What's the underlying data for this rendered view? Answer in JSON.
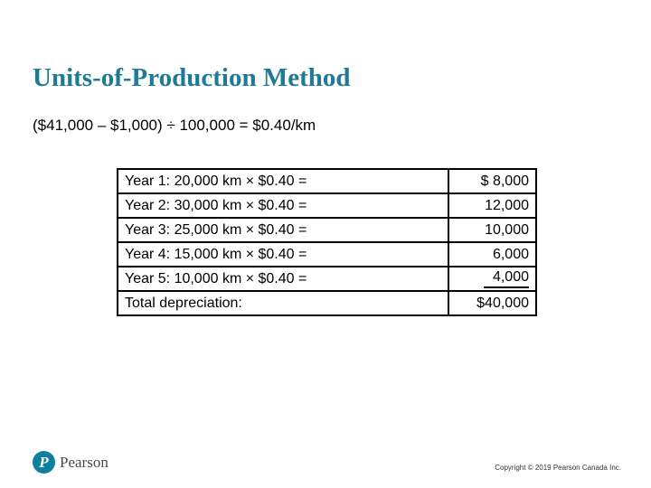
{
  "slide": {
    "title": "Units-of-Production Method",
    "formula": "($41,000 – $1,000) ÷ 100,000 = $0.40/km"
  },
  "table": {
    "rows": [
      {
        "label": "Year 1: 20,000 km × $0.40 =",
        "value": "$ 8,000"
      },
      {
        "label": "Year 2: 30,000 km × $0.40 =",
        "value": "12,000"
      },
      {
        "label": "Year 3: 25,000 km × $0.40 =",
        "value": "10,000"
      },
      {
        "label": "Year 4: 15,000 km × $0.40 =",
        "value": "6,000"
      },
      {
        "label": "Year 5: 10,000 km × $0.40 =",
        "value": "4,000"
      },
      {
        "label": "Total depreciation:",
        "value": "$40,000"
      }
    ]
  },
  "footer": {
    "logo_letter": "P",
    "brand": "Pearson",
    "copyright": "Copyright © 2019 Pearson Canada Inc."
  },
  "colors": {
    "title_teal": "#1F7A96",
    "brand_teal": "#0E7F9E",
    "text": "#000000"
  }
}
